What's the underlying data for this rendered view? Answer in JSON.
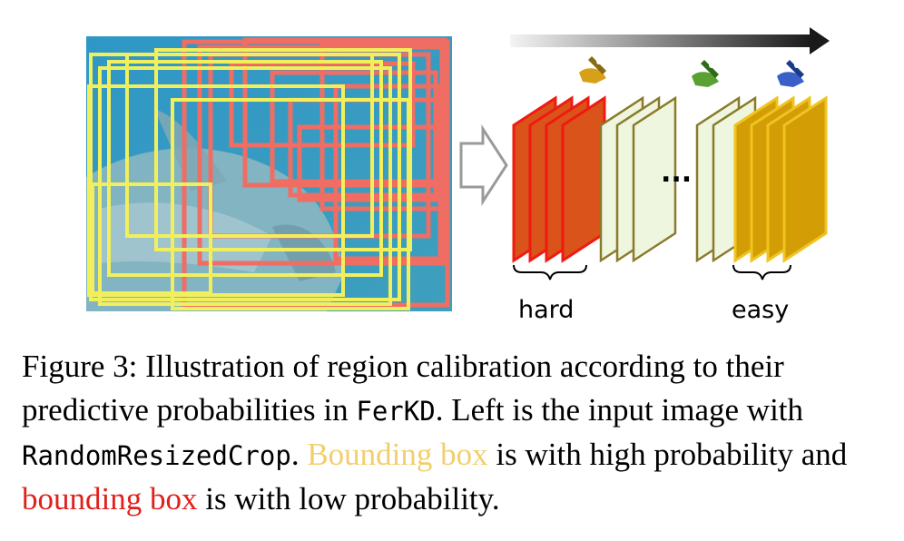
{
  "figure": {
    "labels": {
      "left": "hard",
      "right": "easy"
    },
    "ellipsis": "...",
    "colors": {
      "photo_bg": "#3d99c0",
      "yellow_box": "#f2ef5c",
      "red_box": "#f06d63",
      "hard_fill": "#d9531a",
      "hard_stroke": "#f01a10",
      "light_fill": "#eef6e0",
      "light_stroke": "#8a7a2a",
      "easy_fill": "#d29d05",
      "easy_stroke": "#f0c420"
    },
    "icons": [
      "hand-pen-icon-orange",
      "hand-pen-icon-green",
      "hand-pen-icon-blue"
    ]
  },
  "caption": {
    "part1": "Figure 3: Illustration of region calibration according to their predictive probabilities in ",
    "code1": "FerKD",
    "part2": ". Left is the input image with ",
    "code2": "RandomResizedCrop",
    "part3": ". ",
    "yellow_text": "Bounding box",
    "part4": " is with high probability and ",
    "red_text": "bounding box",
    "part5": " is with low probability."
  }
}
